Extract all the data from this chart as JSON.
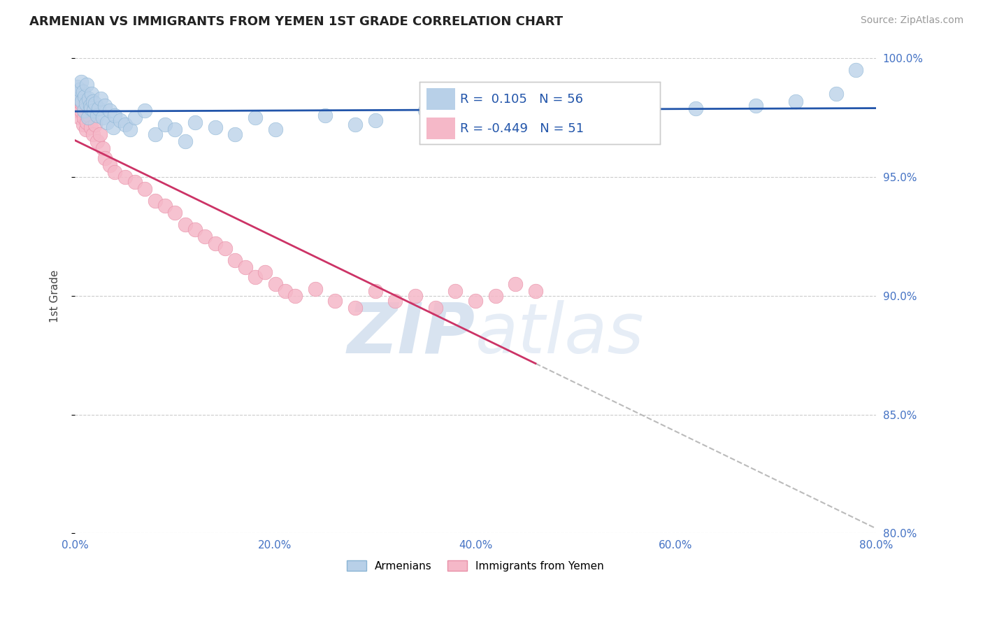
{
  "title": "ARMENIAN VS IMMIGRANTS FROM YEMEN 1ST GRADE CORRELATION CHART",
  "source": "Source: ZipAtlas.com",
  "ylabel": "1st Grade",
  "xlim": [
    0.0,
    80.0
  ],
  "ylim": [
    80.0,
    100.0
  ],
  "xticks": [
    0.0,
    20.0,
    40.0,
    60.0,
    80.0
  ],
  "yticks": [
    80.0,
    85.0,
    90.0,
    95.0,
    100.0
  ],
  "r_armenian": 0.105,
  "n_armenian": 56,
  "r_yemen": -0.449,
  "n_yemen": 51,
  "color_armenian": "#b8d0e8",
  "color_armenian_edge": "#8ab4d4",
  "color_yemen": "#f5b8c8",
  "color_yemen_edge": "#e890a8",
  "line_color_armenian": "#2255aa",
  "line_color_yemen": "#cc3366",
  "watermark_zip": "#b8cce4",
  "watermark_atlas": "#c8d8ec",
  "legend_armenian": "Armenians",
  "legend_yemen": "Immigrants from Yemen",
  "armenian_x": [
    0.2,
    0.3,
    0.4,
    0.5,
    0.6,
    0.7,
    0.8,
    0.9,
    1.0,
    1.1,
    1.2,
    1.3,
    1.4,
    1.5,
    1.6,
    1.7,
    1.8,
    1.9,
    2.0,
    2.2,
    2.4,
    2.6,
    2.8,
    3.0,
    3.2,
    3.5,
    3.8,
    4.0,
    4.5,
    5.0,
    5.5,
    6.0,
    7.0,
    8.0,
    9.0,
    10.0,
    11.0,
    12.0,
    14.0,
    16.0,
    18.0,
    20.0,
    25.0,
    28.0,
    30.0,
    35.0,
    38.0,
    42.0,
    48.0,
    52.0,
    57.0,
    62.0,
    68.0,
    72.0,
    76.0,
    78.0
  ],
  "armenian_y": [
    98.8,
    98.5,
    98.3,
    98.7,
    99.0,
    98.2,
    98.6,
    97.8,
    98.4,
    98.1,
    98.9,
    97.5,
    98.3,
    98.0,
    97.9,
    98.5,
    98.2,
    97.8,
    98.1,
    97.6,
    97.9,
    98.3,
    97.5,
    98.0,
    97.3,
    97.8,
    97.1,
    97.6,
    97.4,
    97.2,
    97.0,
    97.5,
    97.8,
    96.8,
    97.2,
    97.0,
    96.5,
    97.3,
    97.1,
    96.8,
    97.5,
    97.0,
    97.6,
    97.2,
    97.4,
    97.8,
    97.5,
    97.6,
    97.3,
    97.8,
    97.5,
    97.9,
    98.0,
    98.2,
    98.5,
    99.5
  ],
  "yemen_x": [
    0.2,
    0.3,
    0.4,
    0.5,
    0.6,
    0.7,
    0.8,
    0.9,
    1.0,
    1.1,
    1.2,
    1.4,
    1.6,
    1.8,
    2.0,
    2.2,
    2.5,
    2.8,
    3.0,
    3.5,
    4.0,
    5.0,
    6.0,
    7.0,
    8.0,
    9.0,
    10.0,
    11.0,
    12.0,
    13.0,
    14.0,
    15.0,
    16.0,
    17.0,
    18.0,
    19.0,
    20.0,
    21.0,
    22.0,
    24.0,
    26.0,
    28.0,
    30.0,
    32.0,
    34.0,
    36.0,
    38.0,
    40.0,
    42.0,
    44.0,
    46.0
  ],
  "yemen_y": [
    98.2,
    97.8,
    98.0,
    97.5,
    97.8,
    98.1,
    97.2,
    97.5,
    97.8,
    97.0,
    97.3,
    97.6,
    97.1,
    96.8,
    97.2,
    96.5,
    96.8,
    96.2,
    95.8,
    95.5,
    95.2,
    95.0,
    94.8,
    94.5,
    94.0,
    93.8,
    93.5,
    93.0,
    92.8,
    92.5,
    92.2,
    92.0,
    91.5,
    91.2,
    90.8,
    91.0,
    90.5,
    90.2,
    90.0,
    90.3,
    89.8,
    89.5,
    90.2,
    89.8,
    90.0,
    89.5,
    90.2,
    89.8,
    90.0,
    90.5,
    90.2
  ]
}
